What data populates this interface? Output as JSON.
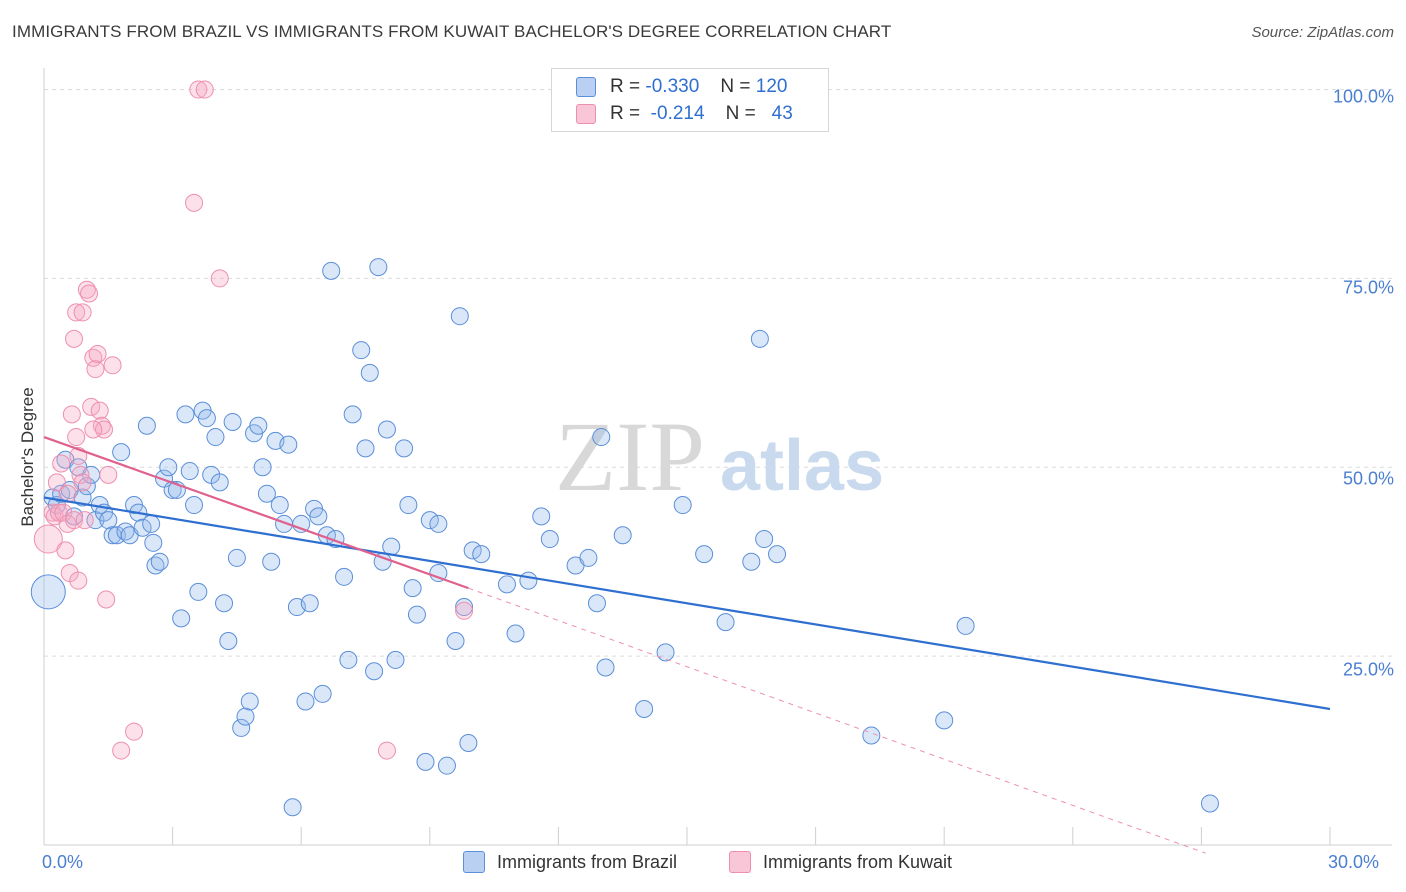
{
  "title": "IMMIGRANTS FROM BRAZIL VS IMMIGRANTS FROM KUWAIT BACHELOR'S DEGREE CORRELATION CHART",
  "source": "Source: ZipAtlas.com",
  "watermark": {
    "zip": "ZIP",
    "atlas": "atlas"
  },
  "legend": {
    "rows": [
      {
        "r_label": "R =",
        "r_value": "-0.330",
        "n_label": "N =",
        "n_value": "120"
      },
      {
        "r_label": "R =",
        "r_value": "-0.214",
        "n_label": "N =",
        "n_value": "43"
      }
    ]
  },
  "chart_data": {
    "type": "scatter",
    "title": "IMMIGRANTS FROM BRAZIL VS IMMIGRANTS FROM KUWAIT BACHELOR'S DEGREE CORRELATION CHART",
    "xlabel": "",
    "ylabel": "Bachelor's Degree",
    "xlim": [
      0,
      30
    ],
    "ylim": [
      0,
      101
    ],
    "x_tick_labels": [
      "0.0%",
      "30.0%"
    ],
    "y_tick_labels": [
      "100.0%",
      "75.0%",
      "50.0%",
      "25.0%"
    ],
    "y_ticks": [
      100,
      75,
      50,
      25
    ],
    "grid": "horizontal dashed",
    "legend_position": "bottom",
    "colors": {
      "brazil": "#5b8fd9",
      "brazil_line": "#2f6fd0",
      "kuwait": "#ee8fb0",
      "kuwait_line": "#e0608e"
    },
    "series": [
      {
        "name": "Immigrants from Brazil",
        "trend": {
          "x0": 0,
          "y0": 46.0,
          "x1": 30,
          "y1": 18.0
        },
        "points": [
          [
            0.1,
            33.5
          ],
          [
            0.2,
            46
          ],
          [
            0.3,
            45
          ],
          [
            0.4,
            46.5
          ],
          [
            0.5,
            51
          ],
          [
            0.6,
            47
          ],
          [
            0.7,
            43.5
          ],
          [
            0.8,
            50
          ],
          [
            0.9,
            46
          ],
          [
            1.0,
            47.5
          ],
          [
            1.1,
            49
          ],
          [
            1.2,
            43
          ],
          [
            1.3,
            45
          ],
          [
            1.4,
            44
          ],
          [
            1.5,
            43
          ],
          [
            1.6,
            41
          ],
          [
            1.7,
            41
          ],
          [
            1.8,
            52
          ],
          [
            1.9,
            41.5
          ],
          [
            2.0,
            41
          ],
          [
            2.1,
            45
          ],
          [
            2.2,
            44
          ],
          [
            2.3,
            42
          ],
          [
            2.4,
            55.5
          ],
          [
            2.5,
            42.5
          ],
          [
            2.55,
            40
          ],
          [
            2.6,
            37
          ],
          [
            2.7,
            37.5
          ],
          [
            2.8,
            48.5
          ],
          [
            2.9,
            50
          ],
          [
            3.0,
            47
          ],
          [
            3.1,
            47
          ],
          [
            3.2,
            30
          ],
          [
            3.3,
            57
          ],
          [
            3.4,
            49.5
          ],
          [
            3.5,
            45
          ],
          [
            3.6,
            33.5
          ],
          [
            3.7,
            57.5
          ],
          [
            3.8,
            56.5
          ],
          [
            3.9,
            49
          ],
          [
            4.0,
            54
          ],
          [
            4.1,
            48
          ],
          [
            4.2,
            32
          ],
          [
            4.3,
            27
          ],
          [
            4.4,
            56
          ],
          [
            4.5,
            38
          ],
          [
            4.6,
            15.5
          ],
          [
            4.7,
            17
          ],
          [
            4.8,
            19
          ],
          [
            4.9,
            54.5
          ],
          [
            5.0,
            55.5
          ],
          [
            5.1,
            50
          ],
          [
            5.2,
            46.5
          ],
          [
            5.3,
            37.5
          ],
          [
            5.4,
            53.5
          ],
          [
            5.5,
            45
          ],
          [
            5.6,
            42.5
          ],
          [
            5.7,
            53
          ],
          [
            5.8,
            5
          ],
          [
            5.9,
            31.5
          ],
          [
            6.0,
            42.5
          ],
          [
            6.1,
            19
          ],
          [
            6.2,
            32
          ],
          [
            6.3,
            44.5
          ],
          [
            6.4,
            43.5
          ],
          [
            6.5,
            20
          ],
          [
            6.6,
            41
          ],
          [
            6.7,
            76
          ],
          [
            6.8,
            40.5
          ],
          [
            7.0,
            35.5
          ],
          [
            7.1,
            24.5
          ],
          [
            7.2,
            57
          ],
          [
            7.4,
            65.5
          ],
          [
            7.5,
            52.5
          ],
          [
            7.6,
            62.5
          ],
          [
            7.7,
            23
          ],
          [
            7.8,
            76.5
          ],
          [
            7.9,
            37.5
          ],
          [
            8.0,
            55
          ],
          [
            8.1,
            39.5
          ],
          [
            8.2,
            24.5
          ],
          [
            8.4,
            52.5
          ],
          [
            8.5,
            45
          ],
          [
            8.6,
            34
          ],
          [
            8.7,
            30.5
          ],
          [
            8.9,
            11
          ],
          [
            9.0,
            43
          ],
          [
            9.2,
            36
          ],
          [
            9.4,
            10.5
          ],
          [
            9.6,
            27
          ],
          [
            9.7,
            70
          ],
          [
            9.9,
            13.5
          ],
          [
            10.0,
            39
          ],
          [
            10.2,
            38.5
          ],
          [
            9.8,
            31.5
          ],
          [
            10.8,
            34.5
          ],
          [
            11.0,
            28
          ],
          [
            11.3,
            35
          ],
          [
            11.6,
            43.5
          ],
          [
            11.8,
            40.5
          ],
          [
            12.4,
            37
          ],
          [
            12.7,
            38
          ],
          [
            12.9,
            32
          ],
          [
            13.0,
            54
          ],
          [
            13.1,
            23.5
          ],
          [
            13.5,
            41
          ],
          [
            14.0,
            18
          ],
          [
            14.5,
            25.5
          ],
          [
            14.9,
            45
          ],
          [
            15.4,
            38.5
          ],
          [
            15.9,
            29.5
          ],
          [
            16.5,
            37.5
          ],
          [
            16.7,
            67
          ],
          [
            16.8,
            40.5
          ],
          [
            17.1,
            38.5
          ],
          [
            19.3,
            14.5
          ],
          [
            21.0,
            16.5
          ],
          [
            21.5,
            29
          ],
          [
            27.2,
            5.5
          ],
          [
            9.2,
            42.5
          ]
        ]
      },
      {
        "name": "Immigrants from Kuwait",
        "trend": {
          "x0": 0,
          "y0": 54.0,
          "x1": 9.9,
          "y1": 34.0
        },
        "trend_ext": {
          "x0": 9.9,
          "y0": 34.0,
          "x1": 30,
          "y1": -7.0
        },
        "points": [
          [
            0.1,
            40.5
          ],
          [
            0.2,
            44
          ],
          [
            0.25,
            43.5
          ],
          [
            0.3,
            48
          ],
          [
            0.35,
            44
          ],
          [
            0.4,
            50.5
          ],
          [
            0.45,
            44
          ],
          [
            0.5,
            39
          ],
          [
            0.55,
            42.5
          ],
          [
            0.6,
            36
          ],
          [
            0.65,
            57
          ],
          [
            0.7,
            43
          ],
          [
            0.75,
            54
          ],
          [
            0.8,
            51.5
          ],
          [
            0.85,
            49
          ],
          [
            0.9,
            48
          ],
          [
            0.7,
            67
          ],
          [
            0.75,
            70.5
          ],
          [
            0.8,
            35
          ],
          [
            0.9,
            70.5
          ],
          [
            1.0,
            73.5
          ],
          [
            1.05,
            73
          ],
          [
            1.1,
            58
          ],
          [
            1.15,
            64.5
          ],
          [
            1.2,
            63
          ],
          [
            1.25,
            65
          ],
          [
            1.3,
            57.5
          ],
          [
            1.35,
            55.5
          ],
          [
            1.4,
            55
          ],
          [
            1.45,
            32.5
          ],
          [
            1.5,
            49
          ],
          [
            1.6,
            63.5
          ],
          [
            1.8,
            12.5
          ],
          [
            2.1,
            15
          ],
          [
            3.6,
            100
          ],
          [
            3.75,
            100
          ],
          [
            3.5,
            85
          ],
          [
            4.1,
            75
          ],
          [
            8.0,
            12.5
          ],
          [
            9.8,
            31
          ],
          [
            0.55,
            46.5
          ],
          [
            0.95,
            43
          ],
          [
            1.15,
            55
          ]
        ]
      }
    ]
  },
  "bottom_legend": {
    "brazil": "Immigrants from Brazil",
    "kuwait": "Immigrants from Kuwait"
  }
}
